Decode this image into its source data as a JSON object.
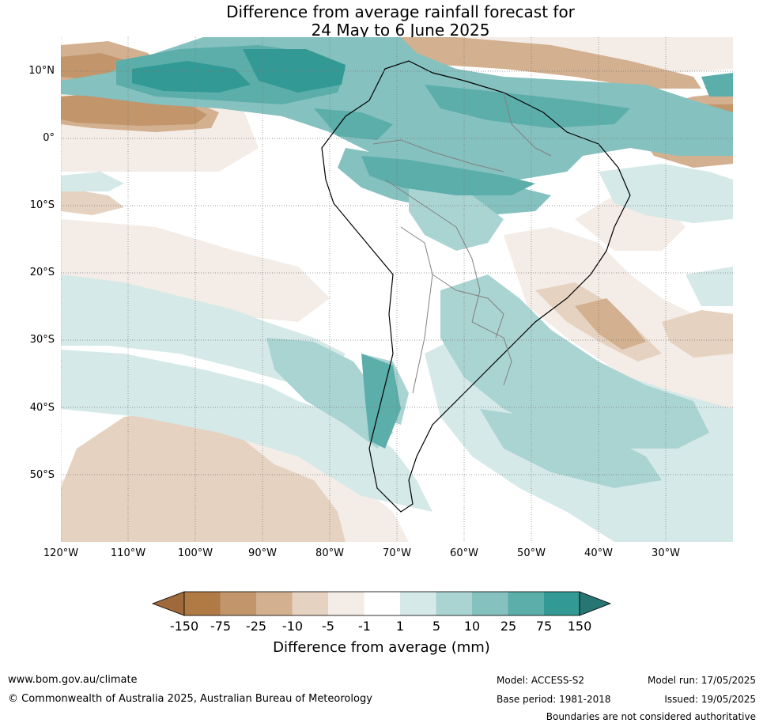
{
  "title": {
    "line1": "Difference from average rainfall forecast for",
    "line2": "24 May to 6 June 2025"
  },
  "map": {
    "lat_labels": [
      "10°N",
      "0°",
      "10°S",
      "20°S",
      "30°S",
      "40°S",
      "50°S"
    ],
    "lon_labels": [
      "120°W",
      "110°W",
      "100°W",
      "90°W",
      "80°W",
      "70°W",
      "60°W",
      "50°W",
      "40°W",
      "30°W"
    ]
  },
  "colorbar": {
    "ticks": [
      "-150",
      "-75",
      "-25",
      "-10",
      "-5",
      "-1",
      "1",
      "5",
      "10",
      "25",
      "75",
      "150"
    ],
    "colors": [
      "#a0693c",
      "#b07a45",
      "#c2956a",
      "#d3b08f",
      "#e6d2c0",
      "#f4ece6",
      "#ffffff",
      "#d5e9e8",
      "#aad4d2",
      "#85c1bf",
      "#5caeab",
      "#329994",
      "#287673"
    ],
    "label": "Difference from average (mm)"
  },
  "footer": {
    "url": "www.bom.gov.au/climate",
    "copyright": "© Commonwealth of Australia 2025, Australian Bureau of Meteorology",
    "model": "Model: ACCESS-S2",
    "base_period": "Base period: 1981-2018",
    "model_run": "Model run: 17/05/2025",
    "issued": "Issued: 19/05/2025",
    "disclaimer": "Boundaries are not considered authoritative"
  }
}
